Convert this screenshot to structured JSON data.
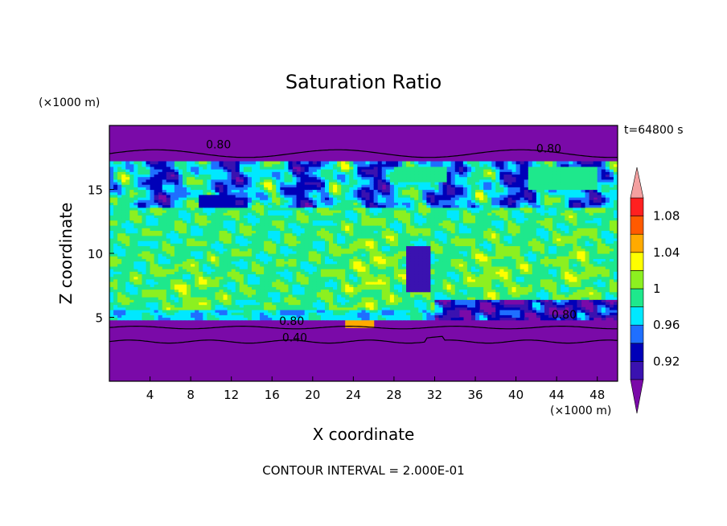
{
  "chart_data": {
    "type": "heatmap",
    "title": "Saturation Ratio",
    "xlabel": "X coordinate",
    "ylabel": "Z coordinate",
    "x_unit": "(×1000 m)",
    "z_unit": "(×1000 m)",
    "time_label": "t=64800 s",
    "footer": "CONTOUR INTERVAL = 2.000E-01",
    "xlim": [
      0,
      50
    ],
    "ylim": [
      0,
      20
    ],
    "x_ticks": [
      4,
      8,
      12,
      16,
      20,
      24,
      28,
      32,
      36,
      40,
      44,
      48
    ],
    "y_ticks": [
      5,
      10,
      15
    ],
    "colorbar": {
      "labeled_ticks": [
        0.92,
        0.96,
        1,
        1.04,
        1.08
      ],
      "levels": [
        0.9,
        0.92,
        0.94,
        0.96,
        0.98,
        1.0,
        1.02,
        1.04,
        1.06,
        1.08,
        1.1
      ],
      "colors": [
        "#7a0aa8",
        "#3a12b0",
        "#0000b8",
        "#1f6fff",
        "#00e8ff",
        "#1ee88c",
        "#8cf020",
        "#ffff00",
        "#ffaa00",
        "#ff5a00",
        "#ff2020",
        "#f4a0a0"
      ],
      "extends": "both"
    },
    "contour_labels": [
      {
        "text": "0.80",
        "x": 9.5,
        "z": 18.2
      },
      {
        "text": "0.80",
        "x": 42.0,
        "z": 17.9
      },
      {
        "text": "0.80",
        "x": 16.7,
        "z": 4.4
      },
      {
        "text": "0.40",
        "x": 17.0,
        "z": 3.1
      },
      {
        "text": "0.80",
        "x": 43.5,
        "z": 4.9
      }
    ]
  }
}
